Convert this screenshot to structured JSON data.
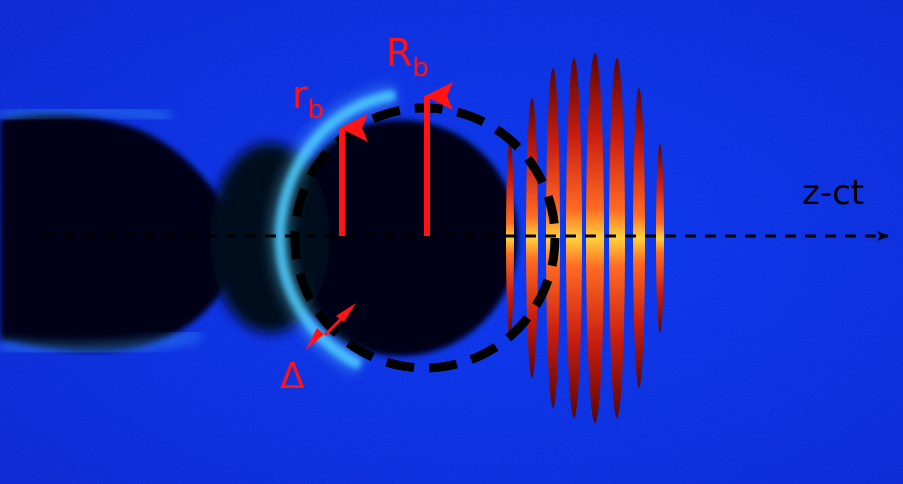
{
  "labels": {
    "R_main": "R",
    "R_sub": "b",
    "r_main": "r",
    "r_sub": "b",
    "delta": "Δ",
    "axis": "z-ct"
  },
  "colors": {
    "background": "#0a2ee6",
    "cavity": "#000000",
    "sheath": "#48c8ff",
    "annotation": "#ff1414",
    "dashed_circle": "#000000",
    "axis_line": "#000000",
    "laser_core": "#ffd23c",
    "laser_mid": "#ff5a1e",
    "laser_edge": "#8c0a0a"
  }
}
